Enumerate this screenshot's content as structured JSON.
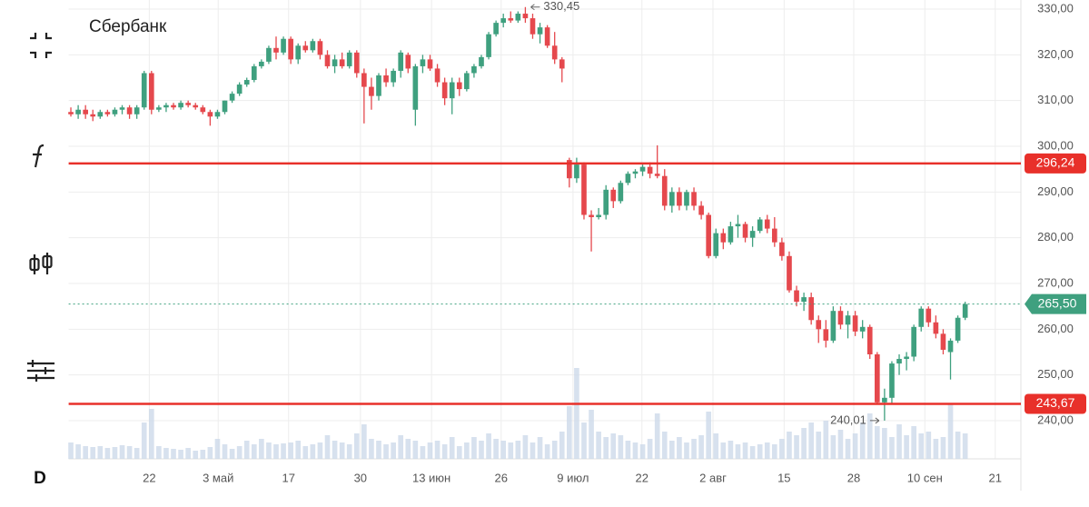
{
  "title": "Сбербанк",
  "interval": "D",
  "chart_data": {
    "type": "candlestick",
    "ylim": [
      231.65,
      331.99
    ],
    "yticks": [
      {
        "value": 330,
        "label": "330,00"
      },
      {
        "value": 320,
        "label": "320,00"
      },
      {
        "value": 310,
        "label": "310,00"
      },
      {
        "value": 300,
        "label": "300,00"
      },
      {
        "value": 290,
        "label": "290,00"
      },
      {
        "value": 280,
        "label": "280,00"
      },
      {
        "value": 270,
        "label": "270,00"
      },
      {
        "value": 260,
        "label": "260,00"
      },
      {
        "value": 250,
        "label": "250,00"
      },
      {
        "value": 240,
        "label": "240,00"
      }
    ],
    "xlim": [
      -0.3,
      129.6
    ],
    "xticks": [
      {
        "value": 10.7,
        "label": "22"
      },
      {
        "value": 20.1,
        "label": "3 май"
      },
      {
        "value": 29.7,
        "label": "17"
      },
      {
        "value": 39.5,
        "label": "30"
      },
      {
        "value": 49.2,
        "label": "13 июн"
      },
      {
        "value": 58.7,
        "label": "26"
      },
      {
        "value": 68.5,
        "label": "9 июл"
      },
      {
        "value": 77.9,
        "label": "22"
      },
      {
        "value": 87.6,
        "label": "2 авг"
      },
      {
        "value": 97.3,
        "label": "15"
      },
      {
        "value": 106.8,
        "label": "28"
      },
      {
        "value": 116.5,
        "label": "10 сен"
      },
      {
        "value": 126.1,
        "label": "21"
      }
    ],
    "grid": true,
    "up_color": "#3fa07f",
    "down_color": "#e5484d",
    "volume_color": "#c9d7e8",
    "ohlc": [
      [
        307.5,
        308.5,
        306.5,
        307
      ],
      [
        307,
        309,
        306,
        308
      ],
      [
        308,
        309,
        306,
        307
      ],
      [
        307,
        308,
        305.5,
        306.5
      ],
      [
        306.5,
        308,
        306,
        307.5
      ],
      [
        307.5,
        308,
        306.5,
        307
      ],
      [
        307,
        308.5,
        306.5,
        308
      ],
      [
        308,
        309,
        307,
        308.5
      ],
      [
        308.5,
        309,
        306,
        307
      ],
      [
        307,
        309,
        306,
        308.5
      ],
      [
        308.5,
        316.5,
        308,
        316
      ],
      [
        316,
        316.5,
        307,
        308
      ],
      [
        308,
        309,
        307.5,
        308.5
      ],
      [
        308.5,
        309.5,
        307.5,
        309
      ],
      [
        309,
        309.5,
        308,
        308.5
      ],
      [
        308.5,
        310,
        308,
        309.5
      ],
      [
        309.5,
        310,
        308.5,
        309
      ],
      [
        309,
        309.5,
        308,
        308.5
      ],
      [
        308.5,
        309,
        307,
        307.5
      ],
      [
        307.5,
        308,
        304.5,
        306.5
      ],
      [
        306.5,
        308,
        306,
        307.5
      ],
      [
        307.5,
        310,
        307,
        310
      ],
      [
        310,
        312,
        309.5,
        311.5
      ],
      [
        311.5,
        314,
        311,
        313.5
      ],
      [
        313.5,
        315,
        313,
        314.5
      ],
      [
        314.5,
        318,
        314,
        317.5
      ],
      [
        317.5,
        319,
        317,
        318.5
      ],
      [
        318.5,
        322,
        318,
        321.5
      ],
      [
        321.5,
        324,
        319,
        320.5
      ],
      [
        320.5,
        324,
        320,
        323.5
      ],
      [
        323.5,
        324,
        318,
        319
      ],
      [
        319,
        322.5,
        318,
        322
      ],
      [
        322,
        323,
        320.5,
        321
      ],
      [
        321,
        323.5,
        320.5,
        323
      ],
      [
        323,
        323.5,
        319,
        320
      ],
      [
        320,
        321,
        317,
        317.5
      ],
      [
        317.5,
        320,
        316,
        319
      ],
      [
        319,
        320.5,
        317,
        317.5
      ],
      [
        317.5,
        321,
        317,
        320.5
      ],
      [
        320.5,
        321,
        315,
        316
      ],
      [
        316,
        317,
        305,
        313
      ],
      [
        313,
        315,
        308,
        311
      ],
      [
        311,
        316,
        310,
        315.5
      ],
      [
        315.5,
        317,
        313,
        314
      ],
      [
        314,
        317,
        313,
        316.5
      ],
      [
        316.5,
        321,
        315,
        320.5
      ],
      [
        320,
        320.5,
        316,
        317
      ],
      [
        308,
        318,
        304.5,
        317.5
      ],
      [
        317.5,
        320,
        316,
        319
      ],
      [
        319,
        320,
        316.5,
        317
      ],
      [
        317,
        318,
        313,
        314
      ],
      [
        314,
        315,
        309,
        310.5
      ],
      [
        310.5,
        315,
        307,
        314
      ],
      [
        314,
        315,
        311,
        312.5
      ],
      [
        312.5,
        316.5,
        312,
        316
      ],
      [
        316,
        318,
        315,
        317.5
      ],
      [
        317.5,
        320,
        317,
        319.5
      ],
      [
        319.5,
        325,
        319,
        324.5
      ],
      [
        324.5,
        327.5,
        324,
        327
      ],
      [
        327,
        329,
        326,
        328
      ],
      [
        328,
        329.5,
        327,
        327.5
      ],
      [
        327.5,
        329.5,
        327,
        329
      ],
      [
        329,
        330.45,
        327,
        328
      ],
      [
        328,
        329,
        323.5,
        324.5
      ],
      [
        324.5,
        327,
        322.5,
        326
      ],
      [
        326,
        326.5,
        321.5,
        322
      ],
      [
        322,
        325,
        318,
        319
      ],
      [
        319,
        319.5,
        314,
        317
      ],
      [
        297,
        297.5,
        291,
        293
      ],
      [
        293,
        297.5,
        292,
        296
      ],
      [
        296,
        296.5,
        284,
        285
      ],
      [
        285,
        286,
        277,
        284.5
      ],
      [
        284.5,
        286.5,
        284,
        285
      ],
      [
        285,
        291.5,
        284,
        290.5
      ],
      [
        290.5,
        291,
        286.5,
        288
      ],
      [
        288,
        292.5,
        287.5,
        292
      ],
      [
        292,
        294.5,
        291.5,
        294
      ],
      [
        294,
        295,
        293,
        294.5
      ],
      [
        294.5,
        296,
        293.5,
        295.5
      ],
      [
        295.5,
        296.5,
        293,
        294
      ],
      [
        294,
        300.2,
        293,
        293.5
      ],
      [
        293.5,
        295,
        286,
        287
      ],
      [
        287,
        291,
        285.5,
        290
      ],
      [
        290,
        291,
        286,
        287
      ],
      [
        287,
        290.5,
        286,
        290
      ],
      [
        290,
        291,
        286,
        287
      ],
      [
        287,
        288,
        284,
        285
      ],
      [
        285,
        285.5,
        275.5,
        276
      ],
      [
        276,
        282,
        275.5,
        281
      ],
      [
        281,
        282,
        277.5,
        279
      ],
      [
        279,
        283.5,
        278.5,
        282.5
      ],
      [
        282.5,
        285,
        280,
        283
      ],
      [
        283,
        283.5,
        279,
        280
      ],
      [
        280,
        282.5,
        278,
        281.5
      ],
      [
        281.5,
        284.5,
        281,
        284
      ],
      [
        284,
        285,
        281,
        282
      ],
      [
        282,
        284.5,
        278,
        279
      ],
      [
        279,
        280,
        275,
        276
      ],
      [
        276,
        277,
        268,
        268.5
      ],
      [
        268.5,
        269.5,
        265,
        266
      ],
      [
        266,
        268,
        264,
        267
      ],
      [
        267,
        268,
        261,
        262
      ],
      [
        262,
        263,
        257,
        260
      ],
      [
        260,
        262,
        256,
        257.5
      ],
      [
        257.5,
        265,
        257,
        264
      ],
      [
        264,
        265,
        260,
        261
      ],
      [
        261,
        264,
        258,
        263
      ],
      [
        263,
        264,
        258.5,
        259.5
      ],
      [
        259.5,
        262,
        258,
        260.5
      ],
      [
        260.5,
        261,
        253.5,
        254.5
      ],
      [
        254.5,
        255,
        243.5,
        244
      ],
      [
        244,
        247,
        240.01,
        245
      ],
      [
        245,
        253,
        243.5,
        252.5
      ],
      [
        252.5,
        254.5,
        250,
        253.5
      ],
      [
        253.5,
        255,
        251,
        254
      ],
      [
        254,
        261,
        253,
        260.5
      ],
      [
        260.5,
        265,
        259.5,
        264.5
      ],
      [
        264.5,
        265,
        260.5,
        261.5
      ],
      [
        261.5,
        263,
        258,
        259
      ],
      [
        259,
        260,
        254.5,
        255.5
      ],
      [
        255,
        258,
        249,
        257.5
      ],
      [
        257.5,
        263,
        257,
        262.5
      ],
      [
        262.5,
        266,
        262,
        265.5
      ]
    ],
    "volumes": [
      18,
      16,
      14,
      13,
      14,
      12,
      13,
      15,
      14,
      12,
      40,
      55,
      14,
      12,
      11,
      10,
      12,
      9,
      10,
      13,
      22,
      16,
      11,
      14,
      20,
      16,
      22,
      18,
      16,
      17,
      18,
      20,
      14,
      16,
      18,
      26,
      20,
      18,
      16,
      28,
      38,
      22,
      20,
      16,
      18,
      26,
      22,
      20,
      14,
      18,
      20,
      16,
      24,
      14,
      18,
      24,
      20,
      28,
      22,
      20,
      18,
      20,
      26,
      18,
      24,
      16,
      20,
      30,
      58,
      100,
      40,
      54,
      30,
      24,
      28,
      26,
      20,
      18,
      16,
      22,
      50,
      30,
      20,
      24,
      18,
      22,
      26,
      52,
      28,
      18,
      20,
      16,
      18,
      14,
      16,
      18,
      16,
      22,
      30,
      26,
      34,
      40,
      30,
      42,
      26,
      32,
      22,
      28,
      40,
      50,
      36,
      34,
      24,
      38,
      26,
      36,
      28,
      30,
      22,
      24,
      60,
      30,
      28
    ],
    "levels": [
      {
        "value": 296.24,
        "label": "296,24",
        "color": "#e8302a"
      },
      {
        "value": 243.67,
        "label": "243,67",
        "color": "#e8302a"
      }
    ],
    "last_price": {
      "value": 265.5,
      "label": "265,50",
      "color": "#3fa07f"
    },
    "max_annotation": {
      "value": 330.45,
      "label": "330,45"
    },
    "min_annotation": {
      "value": 240.01,
      "label": "240,01"
    }
  }
}
